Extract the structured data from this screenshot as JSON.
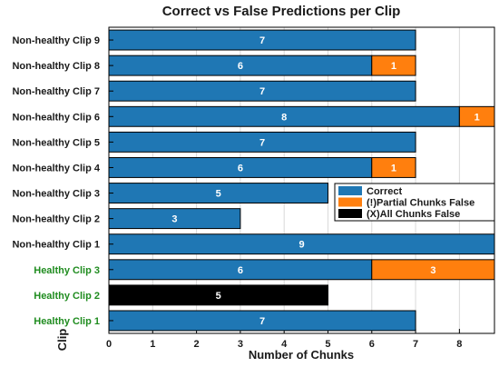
{
  "chart_data": {
    "type": "bar",
    "orientation": "horizontal",
    "stacked": true,
    "title": "Correct vs False Predictions per Clip",
    "xlabel": "Number of Chunks",
    "ylabel": "Clip",
    "xlim": [
      0,
      8.8
    ],
    "xticks": [
      0,
      1,
      2,
      3,
      4,
      5,
      6,
      7,
      8
    ],
    "grid": true,
    "legend_position": "right",
    "categories": [
      "Healthy Clip 1",
      "Healthy Clip 2",
      "Healthy Clip 3",
      "Non-healthy Clip 1",
      "Non-healthy Clip 2",
      "Non-healthy Clip 3",
      "Non-healthy Clip 4",
      "Non-healthy Clip 5",
      "Non-healthy Clip 6",
      "Non-healthy Clip 7",
      "Non-healthy Clip 8",
      "Non-healthy Clip 9"
    ],
    "category_colors": [
      "#1f8c1f",
      "#1f8c1f",
      "#1f8c1f",
      "#1a1a1a",
      "#1a1a1a",
      "#1a1a1a",
      "#1a1a1a",
      "#1a1a1a",
      "#1a1a1a",
      "#1a1a1a",
      "#1a1a1a",
      "#1a1a1a"
    ],
    "series": [
      {
        "name": "Correct",
        "color": "#1f77b4",
        "values": [
          7,
          0,
          6,
          9,
          3,
          5,
          6,
          7,
          8,
          7,
          6,
          7
        ]
      },
      {
        "name": "(!)Partial Chunks False",
        "color": "#ff7f0e",
        "values": [
          0,
          0,
          3,
          0,
          0,
          0,
          1,
          0,
          1,
          0,
          1,
          0
        ]
      },
      {
        "name": "(X)All Chunks False",
        "color": "#000000",
        "values": [
          0,
          5,
          0,
          0,
          0,
          0,
          0,
          0,
          0,
          0,
          0,
          0
        ]
      }
    ]
  }
}
